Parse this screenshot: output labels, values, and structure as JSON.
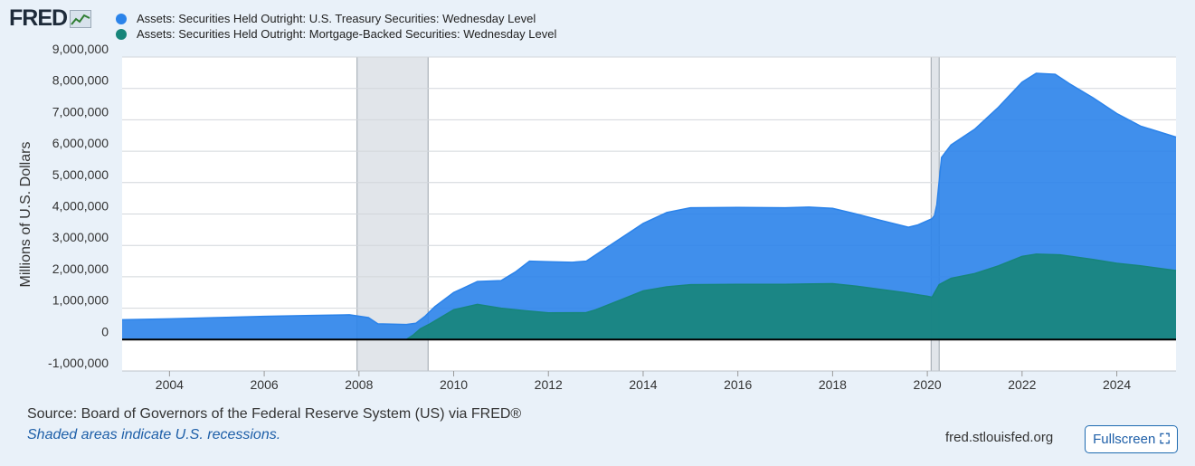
{
  "brand": {
    "logo_text": "FRED"
  },
  "chart_data": {
    "type": "area",
    "title": "",
    "ylabel": "Millions of U.S. Dollars",
    "xlabel": "",
    "xlim": [
      2003.0,
      2025.25
    ],
    "ylim": [
      -1000000,
      9000000
    ],
    "y_ticks": [
      9000000,
      8000000,
      7000000,
      6000000,
      5000000,
      4000000,
      3000000,
      2000000,
      1000000,
      0,
      -1000000
    ],
    "y_tick_labels": [
      "9,000,000",
      "8,000,000",
      "7,000,000",
      "6,000,000",
      "5,000,000",
      "4,000,000",
      "3,000,000",
      "2,000,000",
      "1,000,000",
      "0",
      "-1,000,000"
    ],
    "x_ticks": [
      2004,
      2006,
      2008,
      2010,
      2012,
      2014,
      2016,
      2018,
      2020,
      2022,
      2024
    ],
    "x_tick_labels": [
      "2004",
      "2006",
      "2008",
      "2010",
      "2012",
      "2014",
      "2016",
      "2018",
      "2020",
      "2022",
      "2024"
    ],
    "recessions": [
      {
        "start": 2007.96,
        "end": 2009.46
      },
      {
        "start": 2020.08,
        "end": 2020.25
      }
    ],
    "series": [
      {
        "name": "Assets: Securities Held Outright: U.S. Treasury Securities: Wednesday Level",
        "color": "#2b83ea",
        "points": [
          [
            2003.0,
            630000
          ],
          [
            2004.0,
            660000
          ],
          [
            2005.0,
            700000
          ],
          [
            2006.0,
            740000
          ],
          [
            2007.0,
            770000
          ],
          [
            2007.8,
            790000
          ],
          [
            2008.2,
            700000
          ],
          [
            2008.4,
            500000
          ],
          [
            2009.0,
            480000
          ],
          [
            2009.2,
            520000
          ],
          [
            2009.4,
            750000
          ],
          [
            2009.6,
            1050000
          ],
          [
            2010.0,
            1500000
          ],
          [
            2010.5,
            1850000
          ],
          [
            2011.0,
            1880000
          ],
          [
            2011.3,
            2150000
          ],
          [
            2011.6,
            2500000
          ],
          [
            2012.0,
            2480000
          ],
          [
            2012.5,
            2460000
          ],
          [
            2012.8,
            2500000
          ],
          [
            2013.0,
            2700000
          ],
          [
            2013.5,
            3200000
          ],
          [
            2014.0,
            3700000
          ],
          [
            2014.5,
            4050000
          ],
          [
            2015.0,
            4200000
          ],
          [
            2016.0,
            4210000
          ],
          [
            2017.0,
            4200000
          ],
          [
            2017.5,
            4220000
          ],
          [
            2018.0,
            4180000
          ],
          [
            2018.5,
            4000000
          ],
          [
            2019.0,
            3800000
          ],
          [
            2019.6,
            3580000
          ],
          [
            2019.8,
            3650000
          ],
          [
            2020.1,
            3850000
          ],
          [
            2020.15,
            3950000
          ],
          [
            2020.2,
            4300000
          ],
          [
            2020.3,
            5800000
          ],
          [
            2020.5,
            6200000
          ],
          [
            2021.0,
            6700000
          ],
          [
            2021.5,
            7400000
          ],
          [
            2022.0,
            8200000
          ],
          [
            2022.3,
            8480000
          ],
          [
            2022.7,
            8450000
          ],
          [
            2023.0,
            8150000
          ],
          [
            2023.5,
            7700000
          ],
          [
            2024.0,
            7200000
          ],
          [
            2024.5,
            6800000
          ],
          [
            2025.25,
            6450000
          ]
        ]
      },
      {
        "name": "Assets: Securities Held Outright: Mortgage-Backed Securities: Wednesday Level",
        "color": "#17857a",
        "points": [
          [
            2003.0,
            0
          ],
          [
            2009.0,
            0
          ],
          [
            2009.15,
            150000
          ],
          [
            2009.3,
            350000
          ],
          [
            2009.5,
            500000
          ],
          [
            2010.0,
            950000
          ],
          [
            2010.5,
            1120000
          ],
          [
            2011.0,
            1000000
          ],
          [
            2011.5,
            920000
          ],
          [
            2012.0,
            850000
          ],
          [
            2012.8,
            860000
          ],
          [
            2013.0,
            950000
          ],
          [
            2013.5,
            1250000
          ],
          [
            2014.0,
            1550000
          ],
          [
            2014.5,
            1680000
          ],
          [
            2015.0,
            1750000
          ],
          [
            2016.0,
            1760000
          ],
          [
            2017.0,
            1760000
          ],
          [
            2018.0,
            1780000
          ],
          [
            2018.5,
            1700000
          ],
          [
            2019.0,
            1600000
          ],
          [
            2019.5,
            1500000
          ],
          [
            2020.0,
            1380000
          ],
          [
            2020.1,
            1350000
          ],
          [
            2020.25,
            1750000
          ],
          [
            2020.5,
            1950000
          ],
          [
            2021.0,
            2100000
          ],
          [
            2021.5,
            2350000
          ],
          [
            2022.0,
            2650000
          ],
          [
            2022.3,
            2720000
          ],
          [
            2022.8,
            2700000
          ],
          [
            2023.5,
            2550000
          ],
          [
            2024.0,
            2430000
          ],
          [
            2024.5,
            2350000
          ],
          [
            2025.25,
            2200000
          ]
        ]
      }
    ]
  },
  "footer": {
    "source": "Source: Board of Governors of the Federal Reserve System (US) via FRED®",
    "note": "Shaded areas indicate U.S. recessions.",
    "site": "fred.stlouisfed.org",
    "fullscreen_label": "Fullscreen",
    "fullscreen_icon": "expand-icon"
  }
}
